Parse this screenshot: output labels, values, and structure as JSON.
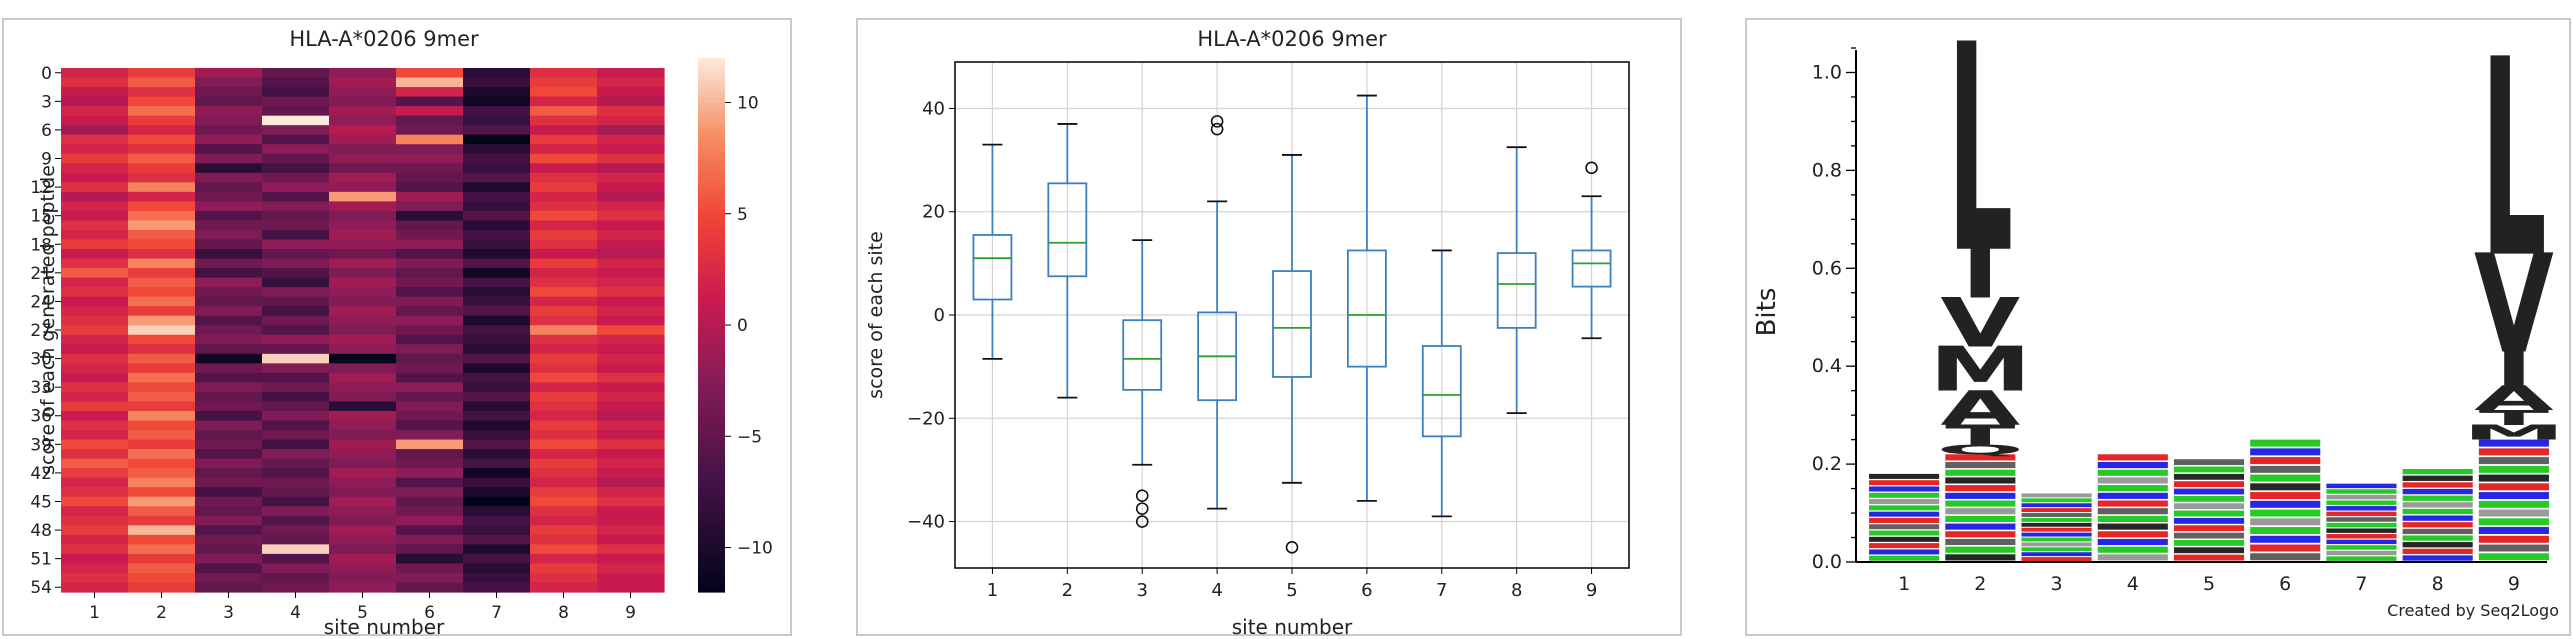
{
  "chart_data": [
    {
      "type": "heatmap",
      "title": "HLA-A*0206 9mer",
      "xlabel": "site number",
      "ylabel": "score of each generated peptide",
      "x_ticks": [
        "1",
        "2",
        "3",
        "4",
        "5",
        "6",
        "7",
        "8",
        "9"
      ],
      "y_ticks": [
        "0",
        "3",
        "6",
        "9",
        "12",
        "15",
        "18",
        "21",
        "24",
        "27",
        "30",
        "33",
        "36",
        "39",
        "42",
        "45",
        "48",
        "51",
        "54"
      ],
      "n_rows": 55,
      "colorbar": {
        "ticks": [
          10,
          5,
          0,
          -5,
          -10
        ],
        "range": [
          -12,
          12
        ]
      },
      "values": [
        [
          2,
          4,
          -1,
          -5,
          -2,
          5,
          -9,
          3,
          1
        ],
        [
          3,
          6,
          -3,
          -6,
          -1,
          10,
          -8,
          4,
          2
        ],
        [
          1,
          3,
          -4,
          -7,
          -2,
          2,
          -10,
          5,
          1
        ],
        [
          0,
          5,
          -5,
          -4,
          -3,
          -6,
          -11,
          2,
          0
        ],
        [
          2,
          7,
          -2,
          -5,
          -1,
          1,
          -7,
          6,
          3
        ],
        [
          1,
          4,
          -3,
          12,
          -2,
          -5,
          -8,
          3,
          2
        ],
        [
          -1,
          2,
          -4,
          -3,
          0,
          -4,
          -6,
          1,
          -1
        ],
        [
          3,
          5,
          -2,
          -6,
          -1,
          8,
          -12,
          4,
          2
        ],
        [
          2,
          3,
          -6,
          -2,
          -3,
          -3,
          -9,
          2,
          1
        ],
        [
          4,
          6,
          -3,
          -5,
          -2,
          -2,
          -7,
          5,
          3
        ],
        [
          2,
          4,
          -9,
          -7,
          -4,
          -4,
          -8,
          1,
          0
        ],
        [
          1,
          3,
          -3,
          -4,
          -1,
          -5,
          -6,
          3,
          2
        ],
        [
          3,
          8,
          -5,
          -2,
          -2,
          -6,
          -10,
          4,
          1
        ],
        [
          0,
          2,
          -4,
          -6,
          9,
          -1,
          -7,
          2,
          0
        ],
        [
          2,
          5,
          -2,
          -3,
          -1,
          -3,
          -8,
          3,
          2
        ],
        [
          1,
          7,
          -6,
          -5,
          -3,
          -9,
          -6,
          5,
          3
        ],
        [
          3,
          9,
          -4,
          -4,
          -2,
          -5,
          -9,
          2,
          1
        ],
        [
          2,
          6,
          -3,
          -7,
          -1,
          -4,
          -7,
          4,
          2
        ],
        [
          4,
          5,
          -5,
          -2,
          -2,
          -2,
          -8,
          3,
          1
        ],
        [
          1,
          3,
          -8,
          -5,
          -4,
          -6,
          -10,
          1,
          0
        ],
        [
          3,
          8,
          -4,
          -3,
          -1,
          -3,
          -6,
          4,
          2
        ],
        [
          6,
          4,
          -7,
          -6,
          -3,
          -5,
          -11,
          2,
          1
        ],
        [
          2,
          6,
          -2,
          -8,
          -1,
          -4,
          -7,
          3,
          2
        ],
        [
          3,
          5,
          -4,
          -3,
          -2,
          -6,
          -9,
          5,
          3
        ],
        [
          1,
          7,
          -5,
          -5,
          -3,
          -3,
          -8,
          2,
          1
        ],
        [
          2,
          4,
          -3,
          -7,
          -1,
          -5,
          -6,
          4,
          2
        ],
        [
          3,
          9,
          -6,
          -4,
          -2,
          -2,
          -10,
          3,
          1
        ],
        [
          4,
          11,
          -4,
          -6,
          -3,
          -4,
          -7,
          8,
          5
        ],
        [
          2,
          5,
          -3,
          -2,
          -1,
          -6,
          -8,
          3,
          2
        ],
        [
          1,
          3,
          -5,
          -5,
          -2,
          -3,
          -9,
          2,
          1
        ],
        [
          3,
          6,
          -11,
          11,
          -12,
          -5,
          -6,
          4,
          2
        ],
        [
          2,
          4,
          -4,
          -3,
          -3,
          -4,
          -10,
          3,
          1
        ],
        [
          1,
          7,
          -6,
          -6,
          -1,
          -6,
          -7,
          5,
          3
        ],
        [
          3,
          5,
          -3,
          -4,
          -2,
          -2,
          -8,
          2,
          1
        ],
        [
          2,
          6,
          -5,
          -7,
          -3,
          -5,
          -6,
          4,
          2
        ],
        [
          4,
          4,
          -4,
          -5,
          -9,
          -3,
          -9,
          3,
          1
        ],
        [
          1,
          8,
          -7,
          -3,
          -1,
          -4,
          -7,
          2,
          0
        ],
        [
          3,
          5,
          -3,
          -6,
          -2,
          -6,
          -10,
          4,
          2
        ],
        [
          2,
          6,
          -5,
          -4,
          -3,
          -3,
          -8,
          3,
          1
        ],
        [
          5,
          4,
          -4,
          -7,
          -1,
          9,
          -6,
          5,
          3
        ],
        [
          3,
          7,
          -6,
          -3,
          -2,
          -5,
          -9,
          2,
          1
        ],
        [
          6,
          5,
          -3,
          -5,
          -3,
          -4,
          -7,
          4,
          2
        ],
        [
          4,
          6,
          -5,
          -6,
          -1,
          -2,
          -11,
          3,
          1
        ],
        [
          2,
          8,
          -4,
          -4,
          -2,
          -6,
          -8,
          2,
          0
        ],
        [
          3,
          5,
          -7,
          -5,
          -3,
          -3,
          -10,
          4,
          2
        ],
        [
          5,
          9,
          -4,
          -7,
          -1,
          -5,
          -12,
          5,
          3
        ],
        [
          2,
          6,
          -5,
          -3,
          -2,
          -4,
          -9,
          3,
          1
        ],
        [
          3,
          4,
          -3,
          -6,
          -3,
          -2,
          -7,
          2,
          1
        ],
        [
          4,
          10,
          -6,
          -4,
          -1,
          -6,
          -8,
          4,
          2
        ],
        [
          2,
          5,
          -4,
          -5,
          -2,
          -3,
          -6,
          3,
          1
        ],
        [
          3,
          7,
          -5,
          11,
          -3,
          -5,
          -10,
          5,
          3
        ],
        [
          1,
          4,
          -3,
          -6,
          -1,
          -9,
          -7,
          2,
          1
        ],
        [
          2,
          6,
          -6,
          -3,
          -2,
          -4,
          -9,
          4,
          2
        ],
        [
          3,
          5,
          -4,
          -5,
          -3,
          -3,
          -8,
          3,
          1
        ],
        [
          2,
          4,
          -5,
          -4,
          -2,
          -5,
          -7,
          2,
          1
        ]
      ]
    },
    {
      "type": "box",
      "title": "HLA-A*0206 9mer",
      "xlabel": "site number",
      "ylabel": "score of each site",
      "categories": [
        "1",
        "2",
        "3",
        "4",
        "5",
        "6",
        "7",
        "8",
        "9"
      ],
      "ylim": [
        -49,
        49
      ],
      "y_ticks": [
        40,
        20,
        0,
        -20,
        -40
      ],
      "grid": true,
      "boxes": [
        {
          "whisker_low": -8.5,
          "q1": 3,
          "median": 11,
          "q3": 15.5,
          "whisker_high": 33,
          "outliers": []
        },
        {
          "whisker_low": -16,
          "q1": 7.5,
          "median": 14,
          "q3": 25.5,
          "whisker_high": 37,
          "outliers": []
        },
        {
          "whisker_low": -29,
          "q1": -14.5,
          "median": -8.5,
          "q3": -1,
          "whisker_high": 14.5,
          "outliers": [
            -35,
            -37.5,
            -40
          ]
        },
        {
          "whisker_low": -37.5,
          "q1": -16.5,
          "median": -8,
          "q3": 0.5,
          "whisker_high": 22,
          "outliers": [
            36,
            37.5
          ]
        },
        {
          "whisker_low": -32.5,
          "q1": -12,
          "median": -2.5,
          "q3": 8.5,
          "whisker_high": 31,
          "outliers": [
            -45
          ]
        },
        {
          "whisker_low": -36,
          "q1": -10,
          "median": 0,
          "q3": 12.5,
          "whisker_high": 42.5,
          "outliers": []
        },
        {
          "whisker_low": -39,
          "q1": -23.5,
          "median": -15.5,
          "q3": -6,
          "whisker_high": 12.5,
          "outliers": []
        },
        {
          "whisker_low": -19,
          "q1": -2.5,
          "median": 6,
          "q3": 12,
          "whisker_high": 32.5,
          "outliers": []
        },
        {
          "whisker_low": -4.5,
          "q1": 5.5,
          "median": 10,
          "q3": 12.5,
          "whisker_high": 23,
          "outliers": [
            28.5
          ]
        }
      ]
    },
    {
      "type": "sequence-logo",
      "ylabel": "Bits",
      "x_ticks": [
        "1",
        "2",
        "3",
        "4",
        "5",
        "6",
        "7",
        "8",
        "9"
      ],
      "ylim": [
        0,
        1.05
      ],
      "y_ticks": [
        "0.0",
        "0.2",
        "0.4",
        "0.6",
        "0.8",
        "1.0"
      ],
      "credit": "Created by Seq2Logo",
      "positions": [
        {
          "total": 0.18,
          "letters": []
        },
        {
          "total": 1.06,
          "letters": [
            {
              "l": "L",
              "h": 0.42,
              "c": "#000000"
            },
            {
              "l": "I",
              "h": 0.1,
              "c": "#000000"
            },
            {
              "l": "V",
              "h": 0.1,
              "c": "#000000"
            },
            {
              "l": "M",
              "h": 0.09,
              "c": "#000000"
            },
            {
              "l": "A",
              "h": 0.07,
              "c": "#000000"
            },
            {
              "l": "T",
              "h": 0.04,
              "c": "#00c000"
            },
            {
              "l": "Q",
              "h": 0.02,
              "c": "#00c000"
            }
          ]
        },
        {
          "total": 0.14,
          "letters": []
        },
        {
          "total": 0.22,
          "letters": []
        },
        {
          "total": 0.21,
          "letters": []
        },
        {
          "total": 0.25,
          "letters": []
        },
        {
          "total": 0.16,
          "letters": []
        },
        {
          "total": 0.19,
          "letters": []
        },
        {
          "total": 1.03,
          "letters": [
            {
              "l": "L",
              "h": 0.4,
              "c": "#000000"
            },
            {
              "l": "V",
              "h": 0.2,
              "c": "#000000"
            },
            {
              "l": "I",
              "h": 0.07,
              "c": "#000000"
            },
            {
              "l": "A",
              "h": 0.05,
              "c": "#000000"
            },
            {
              "l": "T",
              "h": 0.03,
              "c": "#00c000"
            },
            {
              "l": "M",
              "h": 0.03,
              "c": "#000000"
            }
          ]
        }
      ]
    }
  ]
}
